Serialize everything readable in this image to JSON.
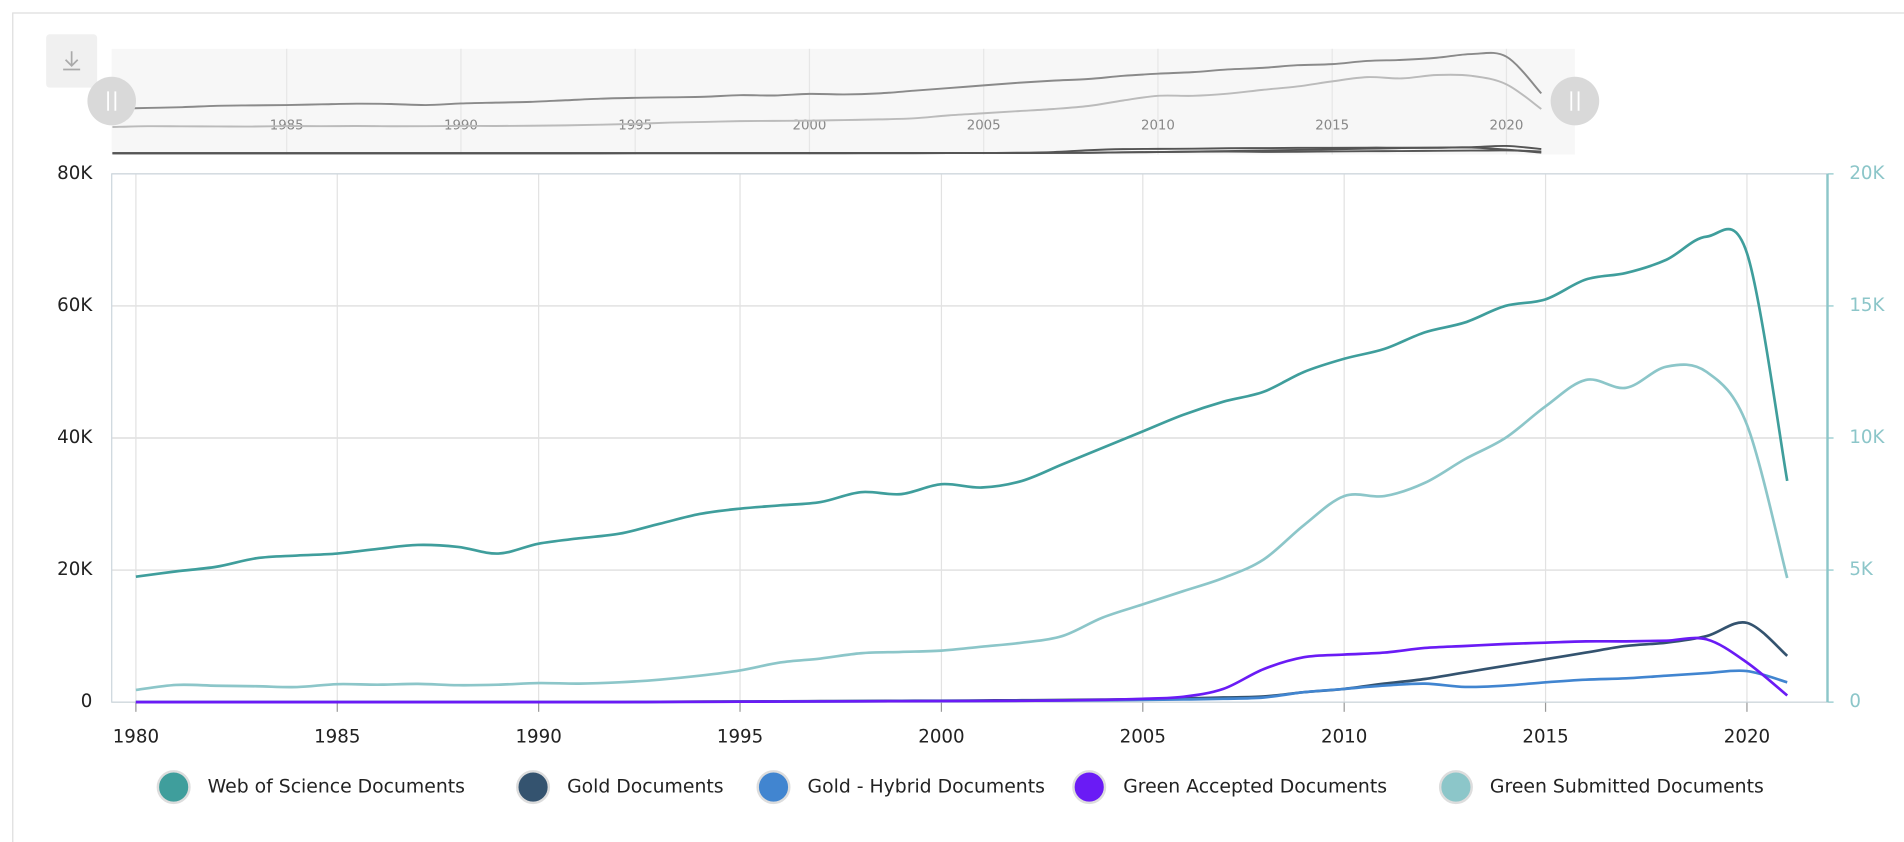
{
  "chart_data": {
    "type": "line",
    "x": [
      1980,
      1981,
      1982,
      1983,
      1984,
      1985,
      1986,
      1987,
      1988,
      1989,
      1990,
      1991,
      1992,
      1993,
      1994,
      1995,
      1996,
      1997,
      1998,
      1999,
      2000,
      2001,
      2002,
      2003,
      2004,
      2005,
      2006,
      2007,
      2008,
      2009,
      2010,
      2011,
      2012,
      2013,
      2014,
      2015,
      2016,
      2017,
      2018,
      2019,
      2020,
      2021
    ],
    "xlim": [
      1979.4,
      2022
    ],
    "xticks": [
      1980,
      1985,
      1990,
      1995,
      2000,
      2005,
      2010,
      2015,
      2020
    ],
    "ylim": [
      0,
      80000
    ],
    "yticks": [
      0,
      {
        "value": 20000,
        "label": "20K"
      },
      {
        "value": 40000,
        "label": "40K"
      },
      {
        "value": 60000,
        "label": "60K"
      },
      {
        "value": 80000,
        "label": "80K"
      }
    ],
    "y2lim": [
      0,
      20000
    ],
    "y2ticks": [
      0,
      {
        "value": 5000,
        "label": "5K"
      },
      {
        "value": 10000,
        "label": "10K"
      },
      {
        "value": 15000,
        "label": "15K"
      },
      {
        "value": 20000,
        "label": "20K"
      }
    ],
    "grid": true,
    "legend": "bottom",
    "navigator": {
      "xticks": [
        1985,
        1990,
        1995,
        2000,
        2005,
        2010,
        2015,
        2020
      ]
    },
    "series": [
      {
        "name": "Web of Science Documents",
        "color": "#3f9e9c",
        "values": [
          19000,
          19800,
          20500,
          21800,
          22200,
          22500,
          23200,
          23800,
          23500,
          22500,
          24000,
          24800,
          25500,
          27000,
          28500,
          29300,
          29800,
          30300,
          31800,
          31500,
          33000,
          32500,
          33500,
          36000,
          38500,
          41000,
          43500,
          45500,
          47000,
          50000,
          52000,
          53500,
          56000,
          57500,
          60000,
          61000,
          64000,
          65000,
          67000,
          70500,
          68000,
          33500
        ]
      },
      {
        "name": "Gold Documents",
        "color": "#34536f",
        "values": [
          0,
          0,
          0,
          0,
          0,
          0,
          0,
          0,
          0,
          0,
          0,
          0,
          0,
          50,
          80,
          100,
          120,
          150,
          180,
          200,
          220,
          250,
          280,
          320,
          380,
          450,
          550,
          700,
          850,
          1500,
          2000,
          2800,
          3500,
          4500,
          5500,
          6500,
          7500,
          8500,
          9000,
          10000,
          12000,
          7000
        ]
      },
      {
        "name": "Gold - Hybrid Documents",
        "color": "#4185d0",
        "values": [
          0,
          0,
          0,
          0,
          0,
          0,
          0,
          0,
          0,
          0,
          0,
          0,
          0,
          30,
          50,
          70,
          90,
          110,
          130,
          150,
          170,
          190,
          210,
          240,
          280,
          330,
          400,
          500,
          700,
          1500,
          2000,
          2500,
          2800,
          2300,
          2500,
          3000,
          3400,
          3600,
          4000,
          4400,
          4700,
          3000
        ]
      },
      {
        "name": "Green Accepted Documents",
        "color": "#6a1bf5",
        "values": [
          0,
          0,
          0,
          0,
          0,
          0,
          0,
          0,
          0,
          0,
          0,
          0,
          0,
          20,
          40,
          60,
          80,
          100,
          120,
          140,
          160,
          180,
          200,
          250,
          350,
          500,
          800,
          2000,
          5000,
          6800,
          7200,
          7500,
          8200,
          8500,
          8800,
          9000,
          9200,
          9200,
          9300,
          9500,
          6000,
          1000
        ]
      },
      {
        "name": "Green Submitted Documents",
        "color": "#8cc6c9",
        "axis": "y2",
        "values": [
          460,
          650,
          620,
          600,
          570,
          680,
          660,
          690,
          640,
          660,
          720,
          700,
          750,
          850,
          1000,
          1200,
          1500,
          1650,
          1850,
          1900,
          1950,
          2100,
          2250,
          2500,
          3200,
          3700,
          4200,
          4700,
          5400,
          6700,
          7800,
          7800,
          8300,
          9200,
          10000,
          11200,
          12200,
          11900,
          12700,
          12500,
          10500,
          4700
        ]
      }
    ]
  }
}
